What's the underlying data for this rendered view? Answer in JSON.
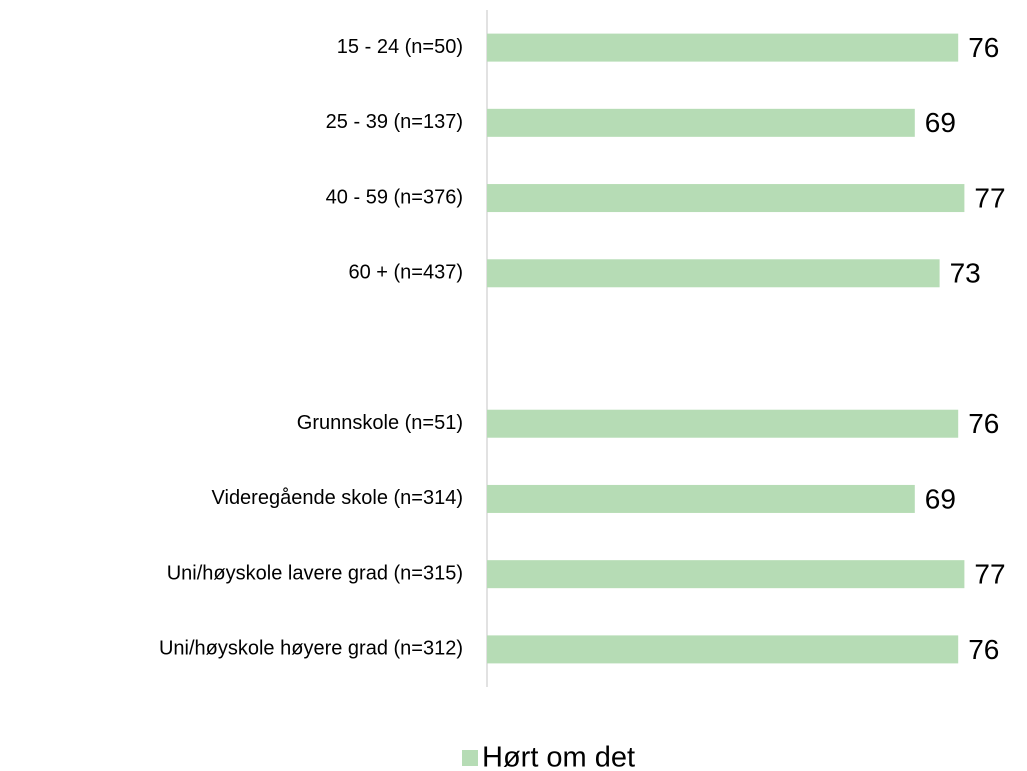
{
  "chart_data": {
    "type": "bar",
    "orientation": "horizontal",
    "categories": [
      "15 - 24 (n=50)",
      "25 - 39 (n=137)",
      "40 - 59 (n=376)",
      "60 + (n=437)",
      null,
      "Grunnskole (n=51)",
      "Videregående skole (n=314)",
      "Uni/høyskole lavere grad (n=315)",
      "Uni/høyskole høyere grad (n=312)"
    ],
    "series": [
      {
        "name": "Hørt om det",
        "color": "#b6dcb5",
        "values": [
          76,
          69,
          77,
          73,
          null,
          76,
          69,
          77,
          76
        ]
      }
    ],
    "legend": "bottom"
  }
}
